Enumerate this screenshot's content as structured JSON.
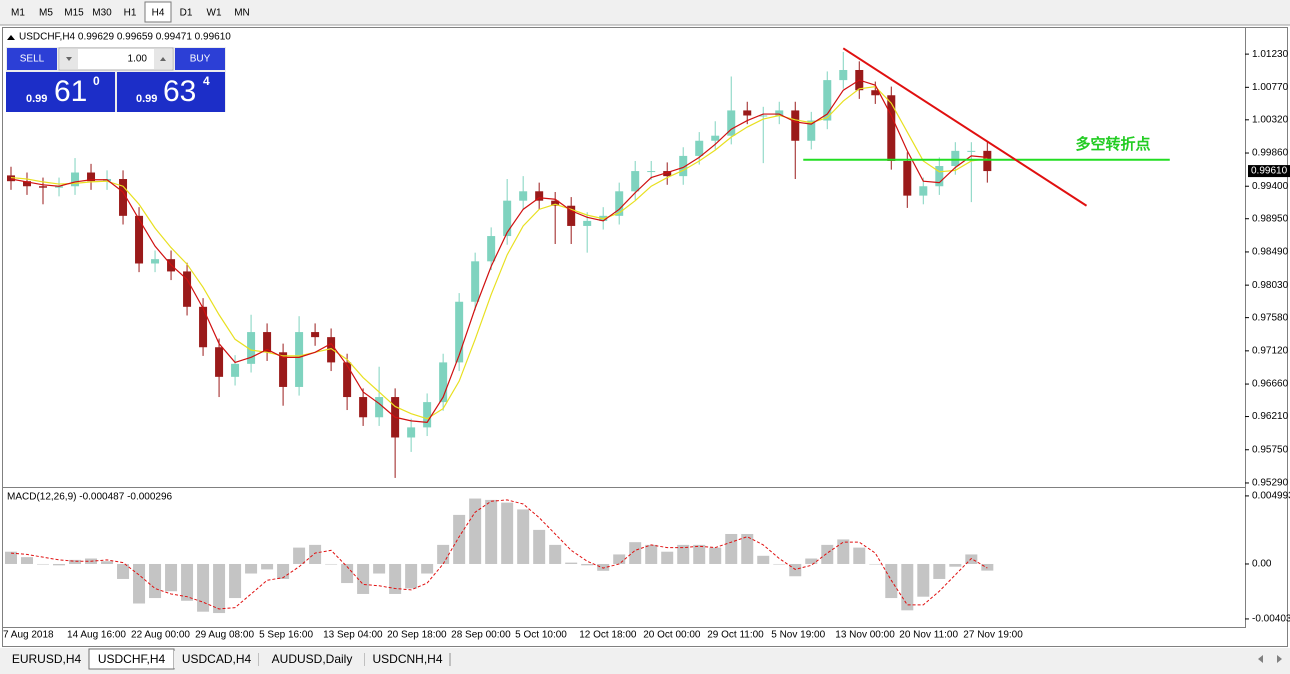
{
  "toolbar": {
    "timeframes": [
      "M1",
      "M5",
      "M15",
      "M30",
      "H1",
      "H4",
      "D1",
      "W1",
      "MN"
    ],
    "active": "H4"
  },
  "trade_panel": {
    "sell": "SELL",
    "buy": "BUY",
    "lot": "1.00",
    "sell_price": {
      "prefix": "0.99",
      "big": "61",
      "small": "0"
    },
    "buy_price": {
      "prefix": "0.99",
      "big": "63",
      "small": "4"
    }
  },
  "tabs": {
    "items": [
      "EURUSD,H4",
      "USDCHF,H4",
      "USDCAD,H4",
      "AUDUSD,Daily",
      "USDCNH,H4"
    ],
    "active": "USDCHF,H4"
  },
  "chart_data": [
    {
      "type": "candlestick",
      "title": "USDCHF,H4  0.99629 0.99659 0.99471 0.99610",
      "categories": [
        "7 Aug 2018",
        null,
        null,
        null,
        "14 Aug 16:00",
        null,
        null,
        null,
        "22 Aug 00:00",
        null,
        null,
        null,
        "29 Aug 08:00",
        null,
        null,
        null,
        "5 Sep 16:00",
        null,
        null,
        null,
        "13 Sep 04:00",
        null,
        null,
        null,
        "20 Sep 18:00",
        null,
        null,
        null,
        "28 Sep 00:00",
        null,
        null,
        null,
        "5 Oct 10:00",
        null,
        null,
        null,
        "12 Oct 18:00",
        null,
        null,
        null,
        "20 Oct 00:00",
        null,
        null,
        null,
        "29 Oct 11:00",
        null,
        null,
        null,
        "5 Nov 19:00",
        null,
        null,
        null,
        "13 Nov 00:00",
        null,
        null,
        null,
        "20 Nov 11:00",
        null,
        null,
        null,
        "27 Nov 19:00",
        null
      ],
      "open": [
        0.9955,
        0.9947,
        0.994,
        0.9938,
        0.994,
        0.9959,
        0.9947,
        0.995,
        0.9899,
        0.9833,
        0.9839,
        0.9822,
        0.9773,
        0.9717,
        0.9676,
        0.9694,
        0.9738,
        0.971,
        0.9662,
        0.9738,
        0.9731,
        0.9696,
        0.9648,
        0.962,
        0.9648,
        0.9592,
        0.9606,
        0.9641,
        0.9696,
        0.978,
        0.9836,
        0.9871,
        0.992,
        0.9933,
        0.992,
        0.9913,
        0.9885,
        0.9892,
        0.9899,
        0.9933,
        0.9961,
        0.9961,
        0.9954,
        0.9982,
        1.0003,
        1.001,
        1.0045,
        1.0038,
        1.0038,
        1.0045,
        1.0003,
        1.0031,
        1.0087,
        1.0101,
        1.0073,
        1.0066,
        0.9975,
        0.9927,
        0.994,
        0.9968,
        0.9989,
        0.9989
      ],
      "high": [
        0.9967,
        0.9959,
        0.9952,
        0.9952,
        0.9979,
        0.9971,
        0.9962,
        0.9962,
        0.9911,
        0.9851,
        0.9851,
        0.9834,
        0.9785,
        0.9729,
        0.9706,
        0.9762,
        0.975,
        0.9722,
        0.976,
        0.975,
        0.9743,
        0.9708,
        0.966,
        0.969,
        0.966,
        0.9618,
        0.9653,
        0.9708,
        0.9792,
        0.9848,
        0.9883,
        0.995,
        0.9954,
        0.9945,
        0.9932,
        0.9925,
        0.9904,
        0.9911,
        0.9945,
        0.9975,
        0.9975,
        0.9973,
        0.9994,
        1.0015,
        1.003,
        1.0092,
        1.0057,
        1.005,
        1.0057,
        1.0057,
        1.0043,
        1.0099,
        1.0126,
        1.0113,
        1.0085,
        1.0078,
        0.9987,
        0.9952,
        0.998,
        1.0001,
        1.0001,
        1.0001
      ],
      "low": [
        0.9935,
        0.9928,
        0.9915,
        0.9926,
        0.9928,
        0.9935,
        0.9935,
        0.9887,
        0.9821,
        0.9821,
        0.981,
        0.9761,
        0.9705,
        0.9648,
        0.9664,
        0.9682,
        0.9698,
        0.9636,
        0.965,
        0.9719,
        0.9684,
        0.963,
        0.9608,
        0.9608,
        0.9536,
        0.9572,
        0.9594,
        0.9629,
        0.9684,
        0.9768,
        0.9824,
        0.9859,
        0.9908,
        0.9908,
        0.986,
        0.986,
        0.9848,
        0.988,
        0.9887,
        0.9921,
        0.9949,
        0.9942,
        0.9942,
        0.997,
        0.9991,
        0.9998,
        1.0026,
        0.9972,
        1.0026,
        0.995,
        0.9991,
        1.0019,
        1.0075,
        1.0061,
        1.0054,
        0.9963,
        0.991,
        0.9915,
        0.9928,
        0.9956,
        0.9918,
        0.9945
      ],
      "close": [
        0.9947,
        0.994,
        0.9938,
        0.994,
        0.9959,
        0.9947,
        0.995,
        0.9899,
        0.9833,
        0.9839,
        0.9822,
        0.9773,
        0.9717,
        0.9676,
        0.9694,
        0.9738,
        0.971,
        0.9662,
        0.9738,
        0.9731,
        0.9696,
        0.9648,
        0.962,
        0.9648,
        0.9592,
        0.9606,
        0.9641,
        0.9696,
        0.978,
        0.9836,
        0.9871,
        0.992,
        0.9933,
        0.992,
        0.9913,
        0.9885,
        0.9892,
        0.9899,
        0.9933,
        0.9961,
        0.9961,
        0.9954,
        0.9982,
        1.0003,
        1.001,
        1.0045,
        1.0038,
        1.0038,
        1.0045,
        1.0003,
        1.0031,
        1.0087,
        1.0101,
        1.0073,
        1.0066,
        0.9975,
        0.9927,
        0.994,
        0.9968,
        0.9989,
        0.9989,
        0.9961
      ],
      "up_color": "#7fd3bf",
      "down_color": "#9a1a1a",
      "moving_averages": [
        {
          "color": "#e8e020",
          "values": [
            0.9952,
            0.995,
            0.9946,
            0.9943,
            0.9944,
            0.9946,
            0.9947,
            0.994,
            0.9915,
            0.9882,
            0.9855,
            0.9832,
            0.98,
            0.9762,
            0.9728,
            0.9713,
            0.971,
            0.9705,
            0.9705,
            0.971,
            0.9715,
            0.97,
            0.9675,
            0.9655,
            0.9635,
            0.9625,
            0.9618,
            0.9632,
            0.967,
            0.9728,
            0.979,
            0.9845,
            0.9885,
            0.9908,
            0.9915,
            0.9908,
            0.99,
            0.9895,
            0.9903,
            0.992,
            0.994,
            0.9952,
            0.9962,
            0.9975,
            0.999,
            1.0008,
            1.0022,
            1.0033,
            1.0038,
            1.0032,
            1.0028,
            1.0035,
            1.0058,
            1.0075,
            1.0078,
            1.0055,
            1.0015,
            0.9975,
            0.996,
            0.9962,
            0.9975,
            0.9978
          ]
        },
        {
          "color": "#d01010",
          "values": [
            0.995,
            0.9946,
            0.9942,
            0.994,
            0.9946,
            0.9949,
            0.9949,
            0.9932,
            0.9894,
            0.9857,
            0.9831,
            0.9811,
            0.9771,
            0.9722,
            0.9696,
            0.9703,
            0.9714,
            0.9703,
            0.9703,
            0.971,
            0.9722,
            0.9692,
            0.9655,
            0.9639,
            0.962,
            0.9615,
            0.9613,
            0.9648,
            0.9706,
            0.9771,
            0.9829,
            0.9876,
            0.9908,
            0.9924,
            0.9922,
            0.9906,
            0.9897,
            0.9892,
            0.9908,
            0.9931,
            0.9952,
            0.9959,
            0.9966,
            0.998,
            0.9998,
            1.0019,
            1.0031,
            1.004,
            1.004,
            1.0029,
            1.0026,
            1.004,
            1.0073,
            1.0087,
            1.008,
            1.0038,
            0.9989,
            0.9947,
            0.9945,
            0.9966,
            0.9982,
            0.998
          ]
        }
      ],
      "xlim": [
        -0.5,
        77.1
      ],
      "ylim": [
        0.95248,
        1.01564
      ],
      "yticks": [
        {
          "value": 1.0123,
          "label": "1.01230"
        },
        {
          "value": 1.0077,
          "label": "1.00770"
        },
        {
          "value": 1.0032,
          "label": "1.00320"
        },
        {
          "value": 0.9986,
          "label": "0.99860"
        },
        {
          "value": 0.994,
          "label": "0.99400"
        },
        {
          "value": 0.9895,
          "label": "0.98950"
        },
        {
          "value": 0.9849,
          "label": "0.98490"
        },
        {
          "value": 0.9803,
          "label": "0.98030"
        },
        {
          "value": 0.9758,
          "label": "0.97580"
        },
        {
          "value": 0.9712,
          "label": "0.97120"
        },
        {
          "value": 0.9666,
          "label": "0.96660"
        },
        {
          "value": 0.9621,
          "label": "0.96210"
        },
        {
          "value": 0.9575,
          "label": "0.95750"
        },
        {
          "value": 0.9529,
          "label": "0.95290"
        }
      ],
      "last_price": {
        "value": 0.9961,
        "label": "0.99610"
      },
      "trend_line": {
        "x": [
          52,
          67.2
        ],
        "y": [
          1.0131,
          0.9913
        ],
        "color": "#e01010"
      },
      "level_line": {
        "x": [
          49.5,
          72.4
        ],
        "y": [
          0.99766,
          0.99766
        ],
        "color": "#22dd22"
      },
      "annotation": {
        "text": "多空转折点",
        "color": "#22cc22"
      }
    },
    {
      "type": "macd",
      "title": "MACD(12,26,9) -0.000487 -0.000296",
      "histogram": {
        "color": "#c4c4c4",
        "values": [
          0.0009,
          0.0005,
          0,
          -0.0001,
          0.0003,
          0.0004,
          0.0002,
          -0.0011,
          -0.0029,
          -0.0025,
          -0.002,
          -0.0027,
          -0.0035,
          -0.0036,
          -0.0025,
          -0.0007,
          -0.0004,
          -0.0011,
          0.0012,
          0.0014,
          0,
          -0.0014,
          -0.0022,
          -0.0007,
          -0.0022,
          -0.0018,
          -0.0007,
          0.0014,
          0.0036,
          0.0048,
          0.0047,
          0.0045,
          0.004,
          0.0025,
          0.0014,
          0.0001,
          -0.0001,
          -0.0005,
          0.0007,
          0.0016,
          0.0014,
          0.0009,
          0.0014,
          0.0014,
          0.0012,
          0.0022,
          0.0022,
          0.0006,
          0,
          -0.0009,
          0.0004,
          0.0014,
          0.0018,
          0.0012,
          0,
          -0.0025,
          -0.0034,
          -0.0024,
          -0.0011,
          -0.0002,
          0.0007,
          -0.000487
        ]
      },
      "signal": {
        "color": "#e01010",
        "values": [
          0.0008,
          0.0007,
          0.0005,
          0.0003,
          0.0002,
          0.0002,
          0.0003,
          0.0001,
          -0.0008,
          -0.0018,
          -0.0022,
          -0.0024,
          -0.0028,
          -0.0033,
          -0.0032,
          -0.0022,
          -0.0012,
          -0.001,
          -0.0002,
          0.0008,
          0.001,
          -0.0002,
          -0.0015,
          -0.0016,
          -0.0018,
          -0.0019,
          -0.0014,
          0,
          0.002,
          0.0038,
          0.0046,
          0.0047,
          0.0044,
          0.0034,
          0.0022,
          0.001,
          0.0002,
          -0.0003,
          0,
          0.001,
          0.0014,
          0.0012,
          0.0012,
          0.0013,
          0.0012,
          0.0016,
          0.002,
          0.0014,
          0.0004,
          -0.0004,
          -0.0001,
          0.0008,
          0.0016,
          0.0016,
          0.0008,
          -0.0012,
          -0.003,
          -0.003,
          -0.002,
          -0.0008,
          0.0004,
          -0.000296
        ]
      },
      "ylim": [
        -0.00455,
        0.0055
      ],
      "yticks": [
        0.004993,
        {
          "value": 0,
          "label": "0.00"
        },
        -0.004032
      ]
    }
  ]
}
